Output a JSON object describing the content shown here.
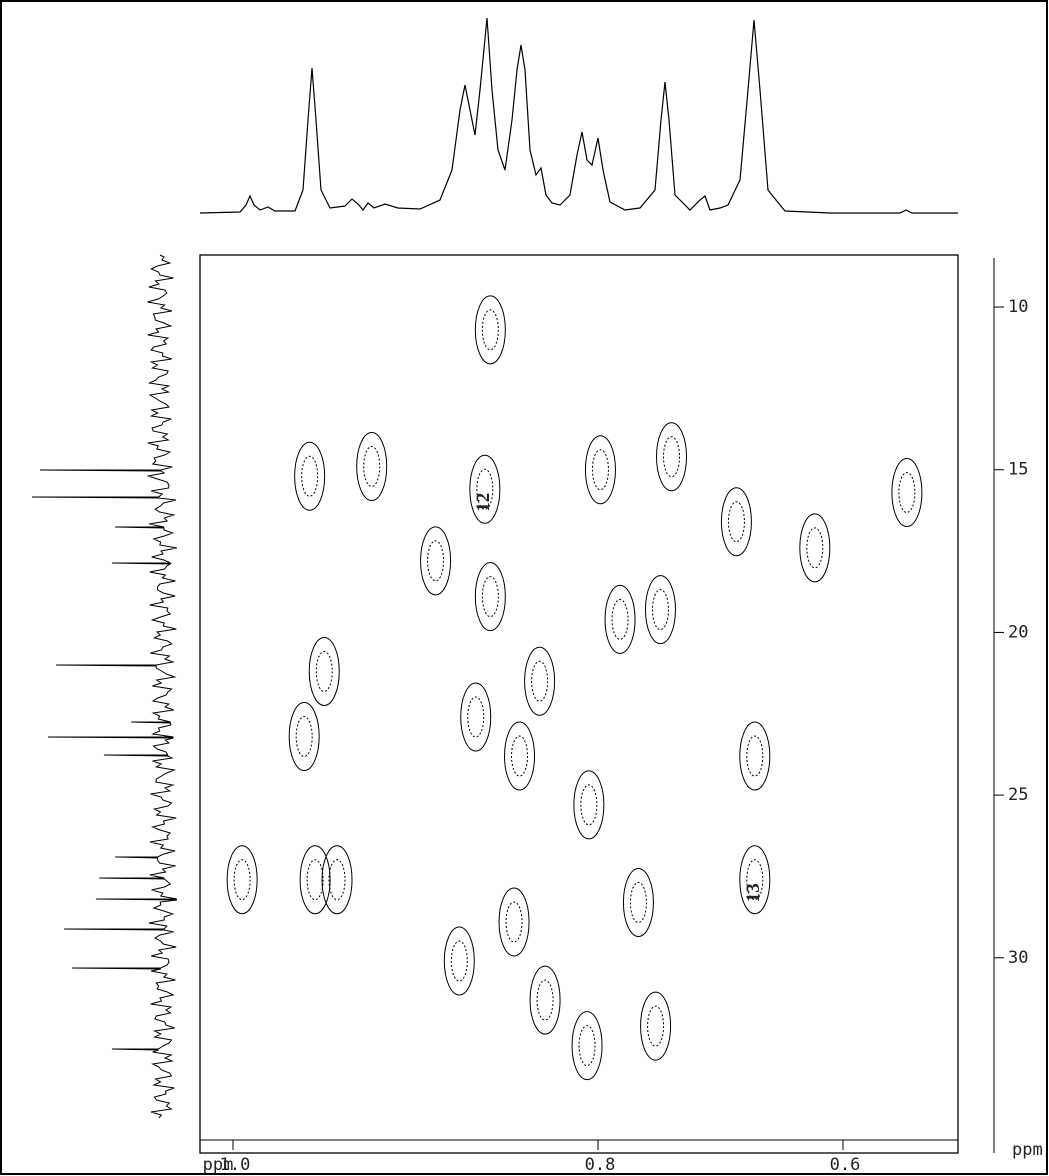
{
  "chart_data": {
    "type": "contour",
    "xlabel": "ppm",
    "ylabel": "ppm",
    "xlim": [
      1.02,
      0.51
    ],
    "ylim": [
      8.4,
      36
    ],
    "xticks": [
      {
        "value": 1.0,
        "label": "1.0"
      },
      {
        "value": 0.8,
        "label": "0.8"
      },
      {
        "value": 0.6,
        "label": "0.6"
      }
    ],
    "yticks": [
      10,
      15,
      20,
      25,
      30
    ],
    "color": "#000000",
    "peaks": [
      {
        "x": 0.859,
        "y": 10.7
      },
      {
        "x": 0.958,
        "y": 15.2
      },
      {
        "x": 0.924,
        "y": 14.9
      },
      {
        "x": 0.862,
        "y": 15.6
      },
      {
        "x": 0.798,
        "y": 15.0
      },
      {
        "x": 0.74,
        "y": 14.6
      },
      {
        "x": 0.687,
        "y": 16.6
      },
      {
        "x": 0.623,
        "y": 17.4
      },
      {
        "x": 0.55,
        "y": 15.7
      },
      {
        "x": 0.889,
        "y": 17.8
      },
      {
        "x": 0.859,
        "y": 18.9
      },
      {
        "x": 0.95,
        "y": 21.2
      },
      {
        "x": 0.961,
        "y": 23.2
      },
      {
        "x": 0.955,
        "y": 27.6
      },
      {
        "x": 0.943,
        "y": 27.6
      },
      {
        "x": 0.995,
        "y": 27.6
      },
      {
        "x": 0.867,
        "y": 22.6
      },
      {
        "x": 0.843,
        "y": 23.8
      },
      {
        "x": 0.832,
        "y": 21.5
      },
      {
        "x": 0.805,
        "y": 25.3
      },
      {
        "x": 0.782,
        "y": 19.6
      },
      {
        "x": 0.749,
        "y": 19.3
      },
      {
        "x": 0.672,
        "y": 23.8
      },
      {
        "x": 0.672,
        "y": 27.6
      },
      {
        "x": 0.876,
        "y": 30.1
      },
      {
        "x": 0.846,
        "y": 28.9
      },
      {
        "x": 0.767,
        "y": 28.3
      },
      {
        "x": 0.753,
        "y": 32.1
      },
      {
        "x": 0.806,
        "y": 32.7
      },
      {
        "x": 0.829,
        "y": 31.3
      }
    ],
    "annotations": [
      {
        "text": "12",
        "x": 0.862,
        "y": 16
      },
      {
        "text": "13",
        "x": 0.672,
        "y": 28
      }
    ]
  }
}
